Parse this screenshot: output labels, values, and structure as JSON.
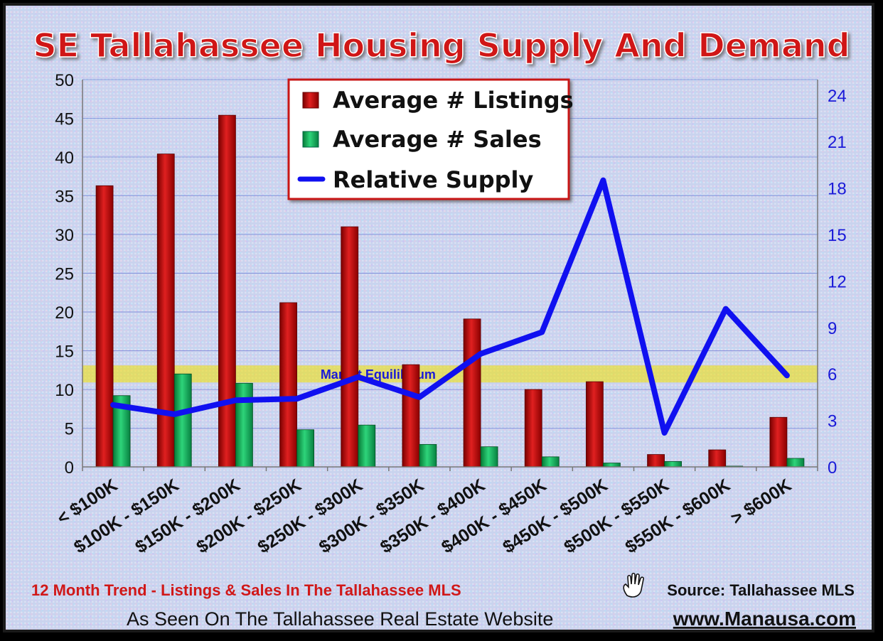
{
  "chart_data": {
    "type": "bar",
    "title": "SE Tallahassee Housing Supply And Demand",
    "categories": [
      "< $100K",
      "$100K - $150K",
      "$150K - $200K",
      "$200K - $250K",
      "$250K - $300K",
      "$300K - $350K",
      "$350K - $400K",
      "$400K - $450K",
      "$450K - $500K",
      "$500K - $550K",
      "$550K - $600K",
      "> $600K"
    ],
    "series": [
      {
        "name": "Average # Listings",
        "axis": "left",
        "kind": "bar",
        "color": "#cc1111",
        "values": [
          36.3,
          40.4,
          45.4,
          21.2,
          31.0,
          13.2,
          19.1,
          10.0,
          11.0,
          1.6,
          2.2,
          6.4
        ]
      },
      {
        "name": "Average # Sales",
        "axis": "left",
        "kind": "bar",
        "color": "#16b05a",
        "values": [
          9.2,
          12.0,
          10.8,
          4.8,
          5.4,
          2.9,
          2.6,
          1.3,
          0.5,
          0.7,
          0.1,
          1.1
        ]
      },
      {
        "name": "Relative Supply",
        "axis": "right",
        "kind": "line",
        "color": "#1010f0",
        "values": [
          4.0,
          3.4,
          4.3,
          4.4,
          5.8,
          4.5,
          7.3,
          8.7,
          18.5,
          2.2,
          10.2,
          5.9
        ]
      }
    ],
    "yleft": {
      "min": 0,
      "max": 50,
      "ticks": [
        0,
        5,
        10,
        15,
        20,
        25,
        30,
        35,
        40,
        45,
        50
      ]
    },
    "yright": {
      "min": 0,
      "max": 25,
      "ticks": [
        0,
        3,
        6,
        9,
        12,
        15,
        18,
        21,
        24
      ]
    },
    "equilibrium": {
      "label": "Market Equilibrium",
      "value": 6
    },
    "legend_placement": "top-center",
    "grid": true
  },
  "footer": {
    "trend": "12 Month Trend - Listings & Sales In The Tallahassee MLS",
    "source": "Source: Tallahassee MLS",
    "seen_on": "As Seen On The Tallahassee Real Estate Website",
    "website": "www.Manausa.com"
  }
}
